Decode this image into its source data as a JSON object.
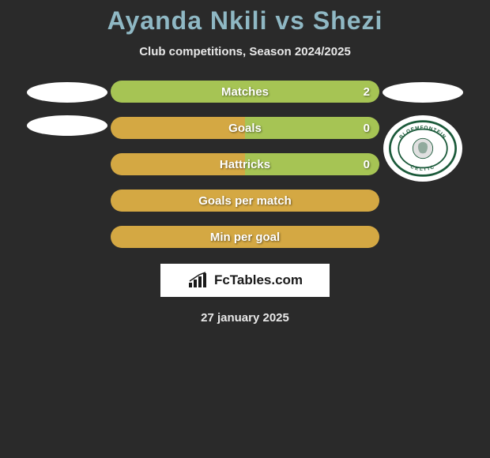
{
  "title": "Ayanda Nkili vs Shezi",
  "subtitle": "Club competitions, Season 2024/2025",
  "date": "27 january 2025",
  "logo_text": "FcTables.com",
  "colors": {
    "background": "#2a2a2a",
    "title": "#8fb8c4",
    "text": "#e8e8e8",
    "bar_left": "#d4a843",
    "bar_right": "#a6c454",
    "badge_green": "#1b5a3a"
  },
  "left_badges": {
    "count": 2,
    "type": "ellipse"
  },
  "right_badges": {
    "items": [
      {
        "type": "ellipse"
      },
      {
        "type": "club",
        "label": "BLOEMFONTEIN CELTIC"
      }
    ]
  },
  "stats": [
    {
      "label": "Matches",
      "left_value": "",
      "right_value": "2",
      "left_ratio": 0.0,
      "right_ratio": 1.0,
      "left_color": "#d4a843",
      "right_color": "#a6c454"
    },
    {
      "label": "Goals",
      "left_value": "",
      "right_value": "0",
      "left_ratio": 0.5,
      "right_ratio": 0.5,
      "left_color": "#d4a843",
      "right_color": "#a6c454"
    },
    {
      "label": "Hattricks",
      "left_value": "",
      "right_value": "0",
      "left_ratio": 0.5,
      "right_ratio": 0.5,
      "left_color": "#d4a843",
      "right_color": "#a6c454"
    },
    {
      "label": "Goals per match",
      "left_value": "",
      "right_value": "",
      "left_ratio": 1.0,
      "right_ratio": 0.0,
      "left_color": "#d4a843",
      "right_color": "#a6c454"
    },
    {
      "label": "Min per goal",
      "left_value": "",
      "right_value": "",
      "left_ratio": 1.0,
      "right_ratio": 0.0,
      "left_color": "#d4a843",
      "right_color": "#a6c454"
    }
  ]
}
